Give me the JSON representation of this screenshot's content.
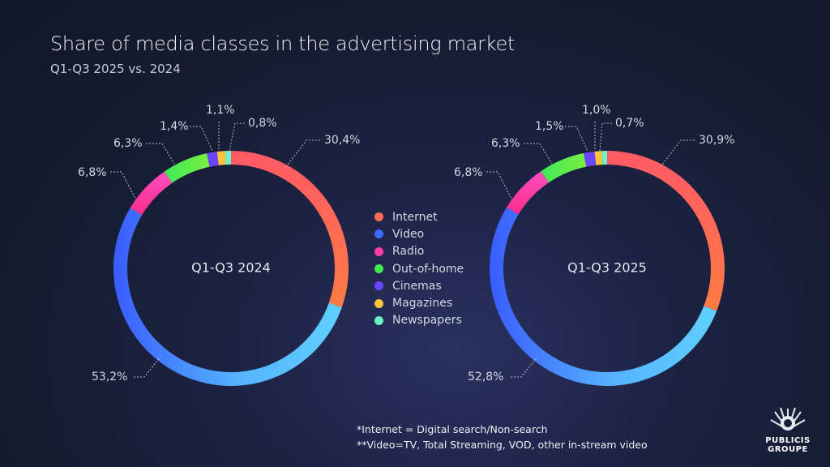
{
  "header": {
    "title": "Share of media classes in the advertising market",
    "subtitle": "Q1-Q3 2025 vs. 2024"
  },
  "chart_data": [
    {
      "type": "pie",
      "variant": "donut",
      "title": "Q1-Q3 2024",
      "categories": [
        "Internet",
        "Video",
        "Radio",
        "Out-of-home",
        "Cinemas",
        "Magazines",
        "Newspapers"
      ],
      "values": [
        30.4,
        53.2,
        6.8,
        6.3,
        1.4,
        1.1,
        0.8
      ],
      "labels": [
        "30,4%",
        "53,2%",
        "6,8%",
        "6,3%",
        "1,4%",
        "1,1%",
        "0,8%"
      ]
    },
    {
      "type": "pie",
      "variant": "donut",
      "title": "Q1-Q3 2025",
      "categories": [
        "Internet",
        "Video",
        "Radio",
        "Out-of-home",
        "Cinemas",
        "Magazines",
        "Newspapers"
      ],
      "values": [
        30.9,
        52.8,
        6.8,
        6.3,
        1.5,
        1.0,
        0.7
      ],
      "labels": [
        "30,9%",
        "52,8%",
        "6,8%",
        "6,3%",
        "1,5%",
        "1,0%",
        "0,7%"
      ]
    }
  ],
  "legend": [
    {
      "label": "Internet",
      "color": "#ff6a55"
    },
    {
      "label": "Video",
      "color": "#3f6bff"
    },
    {
      "label": "Radio",
      "color": "#ff3fa8"
    },
    {
      "label": "Out-of-home",
      "color": "#3fe84f"
    },
    {
      "label": "Cinemas",
      "color": "#6b45ff"
    },
    {
      "label": "Magazines",
      "color": "#ffc43a"
    },
    {
      "label": "Newspapers",
      "color": "#6ff0c8"
    }
  ],
  "footnotes": [
    "*Internet = Digital search/Non-search",
    "**Video=TV, Total Streaming, VOD, other in-stream video"
  ],
  "logo": {
    "line1": "PUBLICIS",
    "line2": "GROUPE"
  }
}
